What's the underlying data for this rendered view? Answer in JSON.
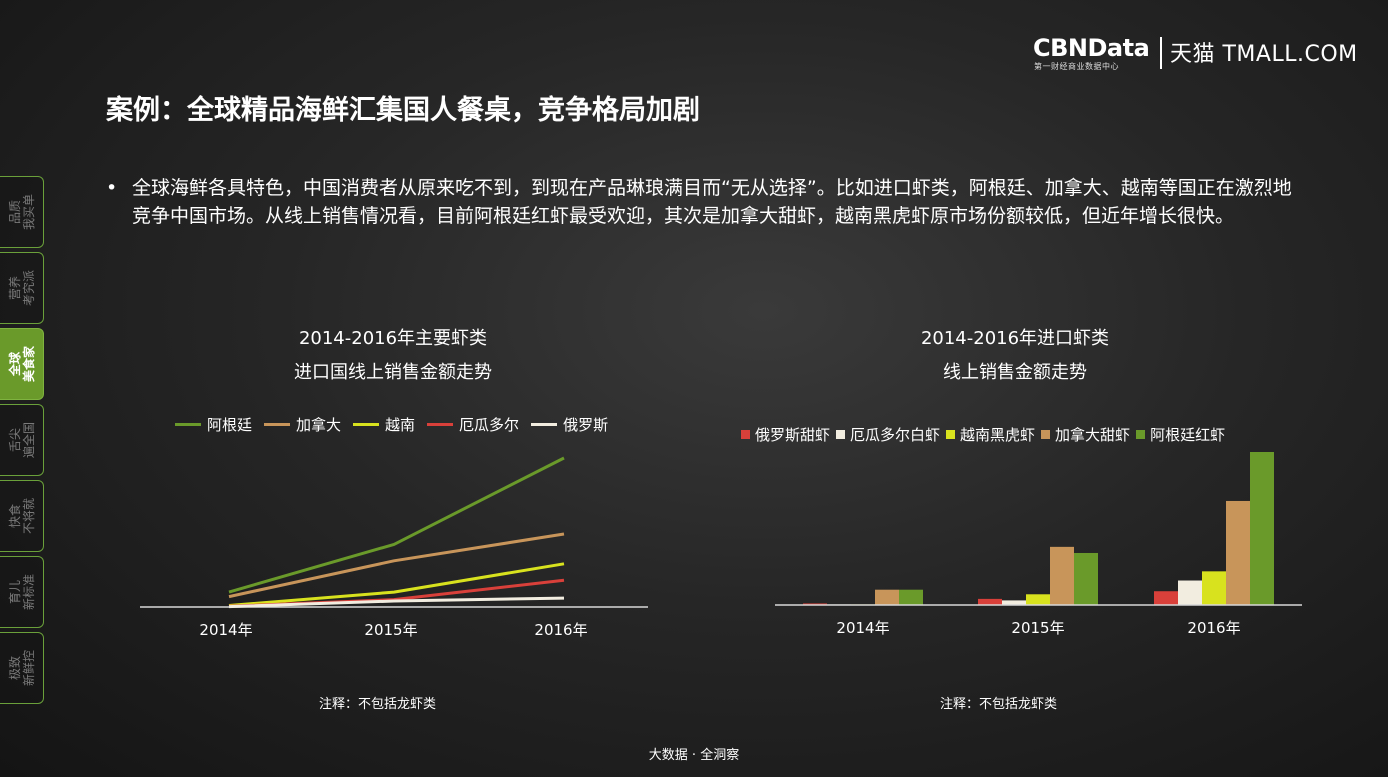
{
  "brand": {
    "cbn": "CBNData",
    "cbn_sub": "第一财经商业数据中心",
    "tmall": "天猫 TMALL.COM"
  },
  "title": "案例：全球精品海鲜汇集国人餐桌，竞争格局加剧",
  "bullet": "全球海鲜各具特色，中国消费者从原来吃不到，到现在产品琳琅满目而“无从选择”。比如进口虾类，阿根廷、加拿大、越南等国正在激烈地竞争中国市场。从线上销售情况看，目前阿根廷红虾最受欢迎，其次是加拿大甜虾，越南黑虎虾原市场份额较低，但近年增长很快。",
  "sidebar": {
    "tabs": [
      {
        "label": "品质\n我买单",
        "active": false
      },
      {
        "label": "营养\n考究派",
        "active": false
      },
      {
        "label": "全球\n美食家",
        "active": true
      },
      {
        "label": "舌尖\n遍全国",
        "active": false
      },
      {
        "label": "快食\n不将就",
        "active": false
      },
      {
        "label": "育儿\n新标准",
        "active": false
      },
      {
        "label": "极致\n新鲜控",
        "active": false
      }
    ]
  },
  "colors": {
    "argentina": "#6a9a2a",
    "canada": "#c8955a",
    "vietnam": "#d8e21e",
    "ecuador": "#d9403a",
    "russia": "#f2ede0",
    "axis": "#d8d8d8"
  },
  "chart_data": [
    {
      "type": "line",
      "title_line1": "2014-2016年主要虾类",
      "title_line2": "进口国线上销售金额走势",
      "categories": [
        "2014年",
        "2015年",
        "2016年"
      ],
      "series": [
        {
          "name": "阿根廷",
          "color": "#6a9a2a",
          "values": [
            10,
            42,
            100
          ]
        },
        {
          "name": "加拿大",
          "color": "#c8955a",
          "values": [
            7,
            31,
            49
          ]
        },
        {
          "name": "越南",
          "color": "#d8e21e",
          "values": [
            1,
            10,
            29
          ]
        },
        {
          "name": "厄瓜多尔",
          "color": "#d9403a",
          "values": [
            0.5,
            5,
            18
          ]
        },
        {
          "name": "俄罗斯",
          "color": "#f2ede0",
          "values": [
            0.3,
            4,
            6
          ]
        }
      ],
      "ylim": [
        0,
        100
      ],
      "note": "注释：不包括龙虾类"
    },
    {
      "type": "bar",
      "title_line1": "2014-2016年进口虾类",
      "title_line2": "线上销售金额走势",
      "categories": [
        "2014年",
        "2015年",
        "2016年"
      ],
      "series": [
        {
          "name": "俄罗斯甜虾",
          "color": "#d9403a",
          "values": [
            1,
            4,
            9
          ]
        },
        {
          "name": "厄瓜多尔白虾",
          "color": "#f2ede0",
          "values": [
            0,
            3,
            16
          ]
        },
        {
          "name": "越南黑虎虾",
          "color": "#d8e21e",
          "values": [
            0,
            7,
            22
          ]
        },
        {
          "name": "加拿大甜虾",
          "color": "#c8955a",
          "values": [
            10,
            38,
            68
          ]
        },
        {
          "name": "阿根廷红虾",
          "color": "#6a9a2a",
          "values": [
            10,
            34,
            100
          ]
        }
      ],
      "ylim": [
        0,
        100
      ],
      "note": "注释：不包括龙虾类"
    }
  ],
  "footer": "大数据 · 全洞察"
}
